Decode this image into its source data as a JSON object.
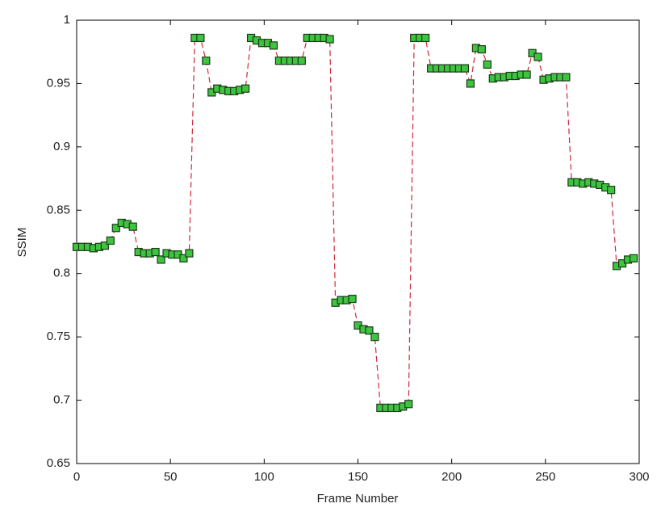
{
  "chart_data": {
    "type": "line",
    "x_label": "Frame Number",
    "y_label": "SSIM",
    "x": [
      0,
      3,
      6,
      9,
      12,
      15,
      18,
      21,
      24,
      27,
      30,
      33,
      36,
      39,
      42,
      45,
      48,
      51,
      54,
      57,
      60,
      63,
      66,
      69,
      72,
      75,
      78,
      81,
      84,
      87,
      90,
      93,
      96,
      99,
      102,
      105,
      108,
      111,
      114,
      117,
      120,
      123,
      126,
      129,
      132,
      135,
      138,
      141,
      144,
      147,
      150,
      153,
      156,
      159,
      162,
      165,
      168,
      171,
      174,
      177,
      180,
      183,
      186,
      189,
      192,
      195,
      198,
      201,
      204,
      207,
      210,
      213,
      216,
      219,
      222,
      225,
      228,
      231,
      234,
      237,
      240,
      243,
      246,
      249,
      252,
      255,
      258,
      261,
      264,
      267,
      270,
      273,
      276,
      279,
      282,
      285,
      288,
      291,
      294,
      297
    ],
    "series": [
      {
        "line_color": "#cc2b3a",
        "marker_color": "#3ec43e",
        "marker_edge": "#1a3a1a",
        "values": [
          0.821,
          0.821,
          0.821,
          0.82,
          0.821,
          0.822,
          0.826,
          0.836,
          0.84,
          0.839,
          0.837,
          0.817,
          0.816,
          0.816,
          0.817,
          0.811,
          0.816,
          0.815,
          0.815,
          0.812,
          0.816,
          0.986,
          0.986,
          0.968,
          0.943,
          0.946,
          0.945,
          0.944,
          0.944,
          0.945,
          0.946,
          0.986,
          0.984,
          0.982,
          0.982,
          0.98,
          0.968,
          0.968,
          0.968,
          0.968,
          0.968,
          0.986,
          0.986,
          0.986,
          0.986,
          0.985,
          0.777,
          0.779,
          0.779,
          0.78,
          0.759,
          0.756,
          0.755,
          0.75,
          0.694,
          0.694,
          0.694,
          0.694,
          0.695,
          0.697,
          0.986,
          0.986,
          0.986,
          0.962,
          0.962,
          0.962,
          0.962,
          0.962,
          0.962,
          0.962,
          0.95,
          0.978,
          0.977,
          0.965,
          0.954,
          0.955,
          0.955,
          0.956,
          0.956,
          0.957,
          0.957,
          0.974,
          0.971,
          0.953,
          0.954,
          0.955,
          0.955,
          0.955,
          0.872,
          0.872,
          0.871,
          0.872,
          0.871,
          0.87,
          0.868,
          0.866,
          0.806,
          0.808,
          0.811,
          0.812
        ]
      }
    ],
    "xlim": [
      0,
      300
    ],
    "xticks": [
      0,
      50,
      100,
      150,
      200,
      250,
      300
    ],
    "ylim": [
      0.65,
      1
    ],
    "yticks": [
      0.65,
      0.7,
      0.75,
      0.8,
      0.85,
      0.9,
      0.95,
      1
    ]
  }
}
